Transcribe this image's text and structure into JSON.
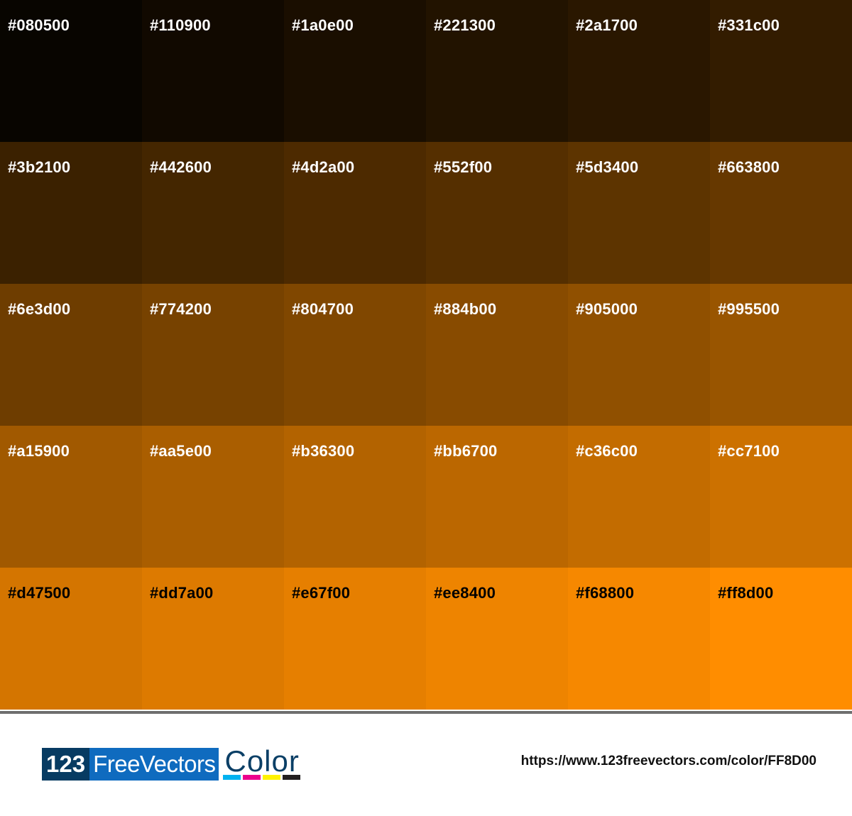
{
  "swatches": [
    {
      "hex": "#080500",
      "text": "#ffffff"
    },
    {
      "hex": "#110900",
      "text": "#ffffff"
    },
    {
      "hex": "#1a0e00",
      "text": "#ffffff"
    },
    {
      "hex": "#221300",
      "text": "#ffffff"
    },
    {
      "hex": "#2a1700",
      "text": "#ffffff"
    },
    {
      "hex": "#331c00",
      "text": "#ffffff"
    },
    {
      "hex": "#3b2100",
      "text": "#ffffff"
    },
    {
      "hex": "#442600",
      "text": "#ffffff"
    },
    {
      "hex": "#4d2a00",
      "text": "#ffffff"
    },
    {
      "hex": "#552f00",
      "text": "#ffffff"
    },
    {
      "hex": "#5d3400",
      "text": "#ffffff"
    },
    {
      "hex": "#663800",
      "text": "#ffffff"
    },
    {
      "hex": "#6e3d00",
      "text": "#ffffff"
    },
    {
      "hex": "#774200",
      "text": "#ffffff"
    },
    {
      "hex": "#804700",
      "text": "#ffffff"
    },
    {
      "hex": "#884b00",
      "text": "#ffffff"
    },
    {
      "hex": "#905000",
      "text": "#ffffff"
    },
    {
      "hex": "#995500",
      "text": "#ffffff"
    },
    {
      "hex": "#a15900",
      "text": "#ffffff"
    },
    {
      "hex": "#aa5e00",
      "text": "#ffffff"
    },
    {
      "hex": "#b36300",
      "text": "#ffffff"
    },
    {
      "hex": "#bb6700",
      "text": "#ffffff"
    },
    {
      "hex": "#c36c00",
      "text": "#ffffff"
    },
    {
      "hex": "#cc7100",
      "text": "#ffffff"
    },
    {
      "hex": "#d47500",
      "text": "#000000"
    },
    {
      "hex": "#dd7a00",
      "text": "#000000"
    },
    {
      "hex": "#e67f00",
      "text": "#000000"
    },
    {
      "hex": "#ee8400",
      "text": "#000000"
    },
    {
      "hex": "#f68800",
      "text": "#000000"
    },
    {
      "hex": "#ff8d00",
      "text": "#000000"
    }
  ],
  "footer": {
    "logo": {
      "part1": "123",
      "part2": "FreeVectors",
      "part3": "Color",
      "bar_colors": [
        "#00b2f0",
        "#ec008c",
        "#fff200",
        "#231f20"
      ]
    },
    "url": "https://www.123freevectors.com/color/FF8D00"
  }
}
